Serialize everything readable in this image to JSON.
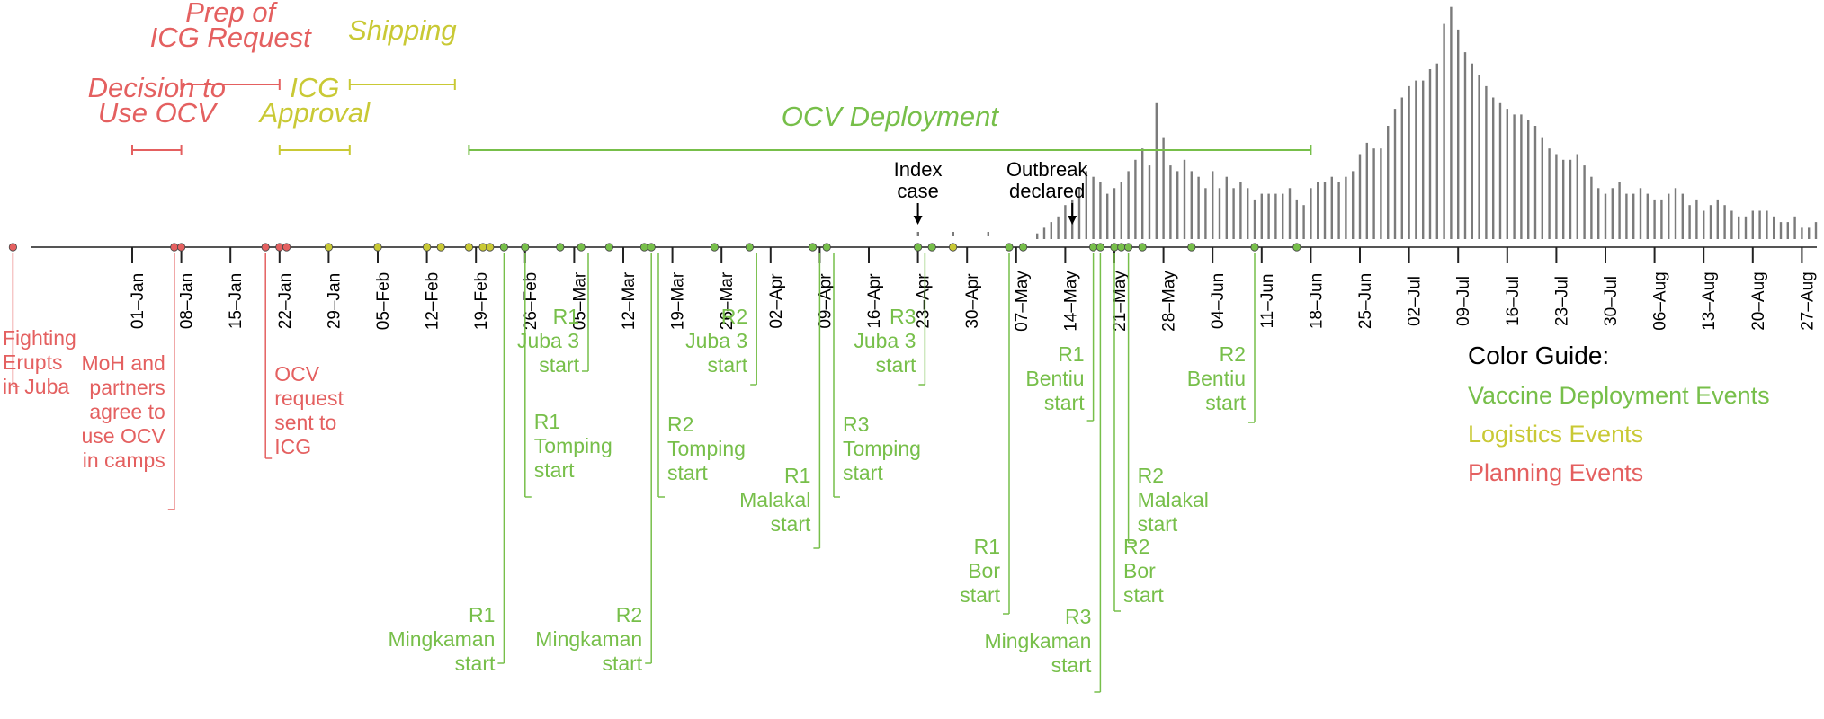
{
  "colors": {
    "deployment": "#77bf4a",
    "logistics": "#c9c935",
    "planning": "#e46060",
    "bars": "#7b7b7b",
    "axis": "#555555",
    "text": "#000000"
  },
  "color_guide": {
    "title": "Color Guide:",
    "items": [
      {
        "label": "Vaccine Deployment Events",
        "color": "deployment"
      },
      {
        "label": "Logistics Events",
        "color": "logistics"
      },
      {
        "label": "Planning Events",
        "color": "planning"
      }
    ]
  },
  "chart_data": {
    "type": "bar",
    "title": "",
    "xlabel": "",
    "ylabel": "",
    "grid": false,
    "x_ticks": [
      "01–Jan",
      "08–Jan",
      "15–Jan",
      "22–Jan",
      "29–Jan",
      "05–Feb",
      "12–Feb",
      "19–Feb",
      "26–Feb",
      "05–Mar",
      "12–Mar",
      "19–Mar",
      "26–Mar",
      "02–Apr",
      "09–Apr",
      "16–Apr",
      "23–Apr",
      "30–Apr",
      "07–May",
      "14–May",
      "21–May",
      "28–May",
      "04–Jun",
      "11–Jun",
      "18–Jun",
      "25–Jun",
      "02–Jul",
      "09–Jul",
      "16–Jul",
      "23–Jul",
      "30–Jul",
      "06–Aug",
      "13–Aug",
      "20–Aug",
      "27–Aug"
    ],
    "daily_cases": {
      "start_date": "2014-04-23",
      "values": [
        1,
        0,
        0,
        0,
        0,
        1,
        0,
        0,
        0,
        0,
        1,
        0,
        0,
        0,
        0,
        0,
        0,
        0,
        0,
        0,
        0,
        0,
        0,
        0,
        0,
        0,
        0,
        0,
        0,
        0,
        0,
        0,
        0,
        0,
        0,
        0,
        0,
        0,
        0,
        0,
        0,
        0,
        0,
        0,
        0,
        0,
        0,
        0,
        0,
        0,
        0,
        0,
        0,
        0,
        0,
        0,
        0,
        0,
        0,
        0,
        0,
        0,
        0,
        0,
        0,
        0,
        0,
        0,
        0,
        0,
        0,
        0,
        0,
        0,
        0,
        0,
        0,
        0,
        0,
        0,
        0,
        0,
        0,
        0,
        0,
        0,
        0,
        0,
        0,
        0,
        0,
        0,
        0,
        0,
        0,
        0,
        0,
        0,
        0,
        0,
        0,
        0,
        0,
        0,
        0,
        0,
        0,
        0,
        0,
        0,
        0,
        0,
        0,
        0,
        0,
        0,
        0,
        0,
        0,
        0,
        0,
        0,
        0,
        0,
        0,
        0,
        0,
        0,
        0,
        0,
        0,
        0,
        0,
        0,
        0,
        0,
        0,
        0,
        0,
        0,
        0,
        0,
        0,
        0,
        0,
        0,
        0,
        0,
        0,
        0,
        0,
        0,
        0,
        0,
        0,
        0,
        0,
        0,
        0,
        0,
        0,
        0,
        0,
        0,
        0,
        0,
        0,
        0,
        0,
        0,
        0,
        0,
        0,
        0,
        0,
        0
      ],
      "values_from_may10": [
        1,
        2,
        3,
        4,
        6,
        7,
        9,
        12,
        11,
        10,
        8,
        9,
        10,
        12,
        14,
        16,
        13,
        24,
        18,
        13,
        12,
        14,
        12,
        11,
        9,
        12,
        9,
        11,
        9,
        10,
        9,
        7,
        8,
        8,
        8,
        8,
        9,
        7,
        6,
        9,
        10,
        10,
        11,
        10,
        11,
        12,
        15,
        17,
        16,
        16,
        20,
        23,
        25,
        27,
        28,
        28,
        30,
        31,
        38,
        41,
        37,
        33,
        31,
        29,
        27,
        25,
        24,
        23,
        22,
        22,
        21,
        20,
        18,
        16,
        15,
        14,
        14,
        15,
        13,
        11,
        9,
        8,
        9,
        10,
        8,
        8,
        9,
        8,
        7,
        7,
        8,
        9,
        8,
        6,
        7,
        5,
        6,
        7,
        6,
        5,
        4,
        4,
        5,
        5,
        5,
        4,
        3,
        3,
        4,
        2,
        2,
        3
      ],
      "ylim": [
        0,
        42
      ]
    },
    "phases": [
      {
        "label": "Decision to\nUse OCV",
        "category": "planning",
        "start": "2014-01-01",
        "end": "2014-01-08",
        "italic": true
      },
      {
        "label": "Prep of\nICG Request",
        "category": "planning",
        "start": "2014-01-08",
        "end": "2014-01-22",
        "italic": true
      },
      {
        "label": "ICG\nApproval",
        "category": "logistics",
        "start": "2014-01-22",
        "end": "2014-02-01",
        "italic": true
      },
      {
        "label": "Shipping",
        "category": "logistics",
        "start": "2014-02-01",
        "end": "2014-02-16",
        "italic": true
      },
      {
        "label": "OCV Deployment",
        "category": "deployment",
        "start": "2014-02-18",
        "end": "2014-06-18",
        "italic": true
      }
    ],
    "index_case": {
      "label": "Index\ncase",
      "date": "2014-04-23"
    },
    "outbreak_declared": {
      "label": "Outbreak\ndeclared",
      "date": "2014-05-15"
    },
    "events": [
      {
        "label": "Fighting\nErupts\nin Juba",
        "category": "planning",
        "date": "2013-12-15"
      },
      {
        "label": "MoH and\npartners\nagree to\nuse OCV\nin camps",
        "category": "planning",
        "date": "2014-01-07"
      },
      {
        "label": "OCV\nrequest\nsent to\nICG",
        "category": "planning",
        "date": "2014-01-20"
      },
      {
        "label": "R1\nMingkaman\nstart",
        "category": "deployment",
        "date": "2014-02-23"
      },
      {
        "label": "R1\nTomping\nstart",
        "category": "deployment",
        "date": "2014-02-26"
      },
      {
        "label": "R1\nJuba 3\nstart",
        "category": "deployment",
        "date": "2014-03-07"
      },
      {
        "label": "R2\nMingkaman\nstart",
        "category": "deployment",
        "date": "2014-03-16"
      },
      {
        "label": "R2\nTomping\nstart",
        "category": "deployment",
        "date": "2014-03-17"
      },
      {
        "label": "R2\nJuba 3\nstart",
        "category": "deployment",
        "date": "2014-03-31"
      },
      {
        "label": "R1\nMalakal\nstart",
        "category": "deployment",
        "date": "2014-04-09"
      },
      {
        "label": "R3\nTomping\nstart",
        "category": "deployment",
        "date": "2014-04-11"
      },
      {
        "label": "R3\nJuba 3\nstart",
        "category": "deployment",
        "date": "2014-04-24"
      },
      {
        "label": "R1\nBor\nstart",
        "category": "deployment",
        "date": "2014-05-06"
      },
      {
        "label": "R1\nBentiu\nstart",
        "category": "deployment",
        "date": "2014-05-18"
      },
      {
        "label": "R3\nMingkaman\nstart",
        "category": "deployment",
        "date": "2014-05-19"
      },
      {
        "label": "R2\nBor\nstart",
        "category": "deployment",
        "date": "2014-05-21"
      },
      {
        "label": "R2\nMalakal\nstart",
        "category": "deployment",
        "date": "2014-05-23"
      },
      {
        "label": "R2\nBentiu\nstart",
        "category": "deployment",
        "date": "2014-06-10"
      }
    ],
    "markers": {
      "planning": [
        "2013-12-15",
        "2014-01-07",
        "2014-01-08",
        "2014-01-20",
        "2014-01-22",
        "2014-01-23"
      ],
      "logistics": [
        "2014-01-29",
        "2014-02-05",
        "2014-02-12",
        "2014-02-14",
        "2014-02-18",
        "2014-02-20",
        "2014-02-21",
        "2014-04-28"
      ],
      "deployment": [
        "2014-02-23",
        "2014-02-26",
        "2014-03-03",
        "2014-03-06",
        "2014-03-10",
        "2014-03-15",
        "2014-03-16",
        "2014-03-25",
        "2014-03-30",
        "2014-04-08",
        "2014-04-10",
        "2014-04-23",
        "2014-04-25",
        "2014-05-06",
        "2014-05-08",
        "2014-05-18",
        "2014-05-19",
        "2014-05-21",
        "2014-05-22",
        "2014-05-23",
        "2014-05-25",
        "2014-06-01",
        "2014-06-10",
        "2014-06-16"
      ]
    }
  }
}
